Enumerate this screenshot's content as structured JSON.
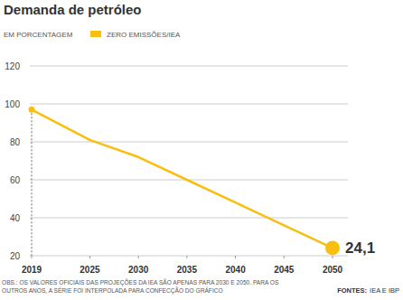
{
  "chart_data": {
    "type": "line",
    "title": "Demanda de petróleo",
    "subtitle": "EM PORCENTAGEM",
    "x": [
      2019,
      2025,
      2030,
      2035,
      2040,
      2045,
      2050
    ],
    "xlim": [
      2019,
      2050
    ],
    "xticks": [
      2019,
      2025,
      2030,
      2035,
      2040,
      2045,
      2050
    ],
    "ylim": [
      20,
      120
    ],
    "yticks": [
      20,
      40,
      60,
      80,
      100,
      120
    ],
    "grid": true,
    "series": [
      {
        "name": "ZERO EMISSÕES/IEA",
        "color": "#f9bf0f",
        "values": [
          97,
          81,
          72,
          60,
          48,
          36,
          24.1
        ],
        "value_labels": [
          null,
          null,
          null,
          null,
          null,
          null,
          "24,1"
        ],
        "marker": "circle"
      }
    ],
    "note": [
      "OBS.: OS VALORES OFICIAIS DAS PROJEÇÕES DA IEA SÃO APENAS PARA 2030 E 2050. PARA OS",
      "OUTROS ANOS, A SÉRIE FOI INTERPOLADA PARA CONFECÇÃO DO GRÁFICO"
    ],
    "source_label": "FONTES:",
    "source": "IEA E IBP"
  }
}
